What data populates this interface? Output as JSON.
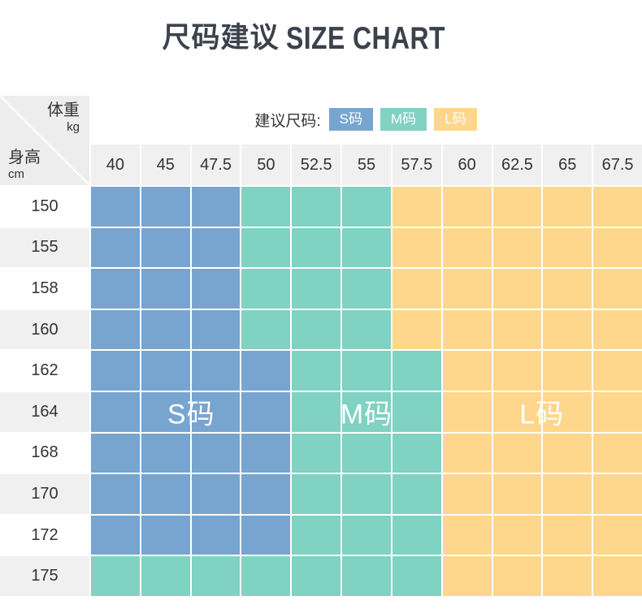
{
  "title": {
    "zh": "尺码建议",
    "en": "SIZE CHART"
  },
  "corner": {
    "weight": "体重",
    "weight_unit": "kg",
    "height": "身高",
    "height_unit": "cm"
  },
  "legend": {
    "label": "建议尺码:",
    "items": [
      {
        "size": "S",
        "label": "S码"
      },
      {
        "size": "M",
        "label": "M码"
      },
      {
        "size": "L",
        "label": "L码"
      }
    ]
  },
  "colors": {
    "S": "#78a5cf",
    "M": "#80d2c2",
    "L": "#ffd78c"
  },
  "columns": [
    "40",
    "45",
    "47.5",
    "50",
    "52.5",
    "55",
    "57.5",
    "60",
    "62.5",
    "65",
    "67.5"
  ],
  "rows": [
    "150",
    "155",
    "158",
    "160",
    "162",
    "164",
    "168",
    "170",
    "172",
    "175"
  ],
  "size_map": [
    "SSSMMMLLLLL",
    "SSSMMMLLLLL",
    "SSSMMMLLLLL",
    "SSSMMMLLLLL",
    "SSSSMMMLLLL",
    "SSSSMMMLLLL",
    "SSSSMMMLLLL",
    "SSSSMMMLLLL",
    "SSSSMMMLLLL",
    "MMMMMMMLLLL"
  ],
  "region_labels": [
    {
      "size": "S",
      "label": "S码"
    },
    {
      "size": "M",
      "label": "M码"
    },
    {
      "size": "L",
      "label": "L码"
    }
  ],
  "chart_data": {
    "type": "table",
    "title": "尺码建议 SIZE CHART",
    "x_axis": {
      "label": "体重kg",
      "ticks": [
        "40",
        "45",
        "47.5",
        "50",
        "52.5",
        "55",
        "57.5",
        "60",
        "62.5",
        "65",
        "67.5"
      ]
    },
    "y_axis": {
      "label": "身高cm",
      "ticks": [
        "150",
        "155",
        "158",
        "160",
        "162",
        "164",
        "168",
        "170",
        "172",
        "175"
      ]
    },
    "legend": [
      "S码",
      "M码",
      "L码"
    ],
    "legend_prefix": "建议尺码:",
    "cells_by_row": [
      "SSSMMMLLLLL",
      "SSSMMMLLLLL",
      "SSSMMMLLLLL",
      "SSSMMMLLLLL",
      "SSSSMMMLLLL",
      "SSSSMMMLLLL",
      "SSSSMMMLLLL",
      "SSSSMMMLLLL",
      "SSSSMMMLLLL",
      "MMMMMMMLLLL"
    ],
    "series_colors": {
      "S码": "#78a5cf",
      "M码": "#80d2c2",
      "L码": "#ffd78c"
    }
  }
}
